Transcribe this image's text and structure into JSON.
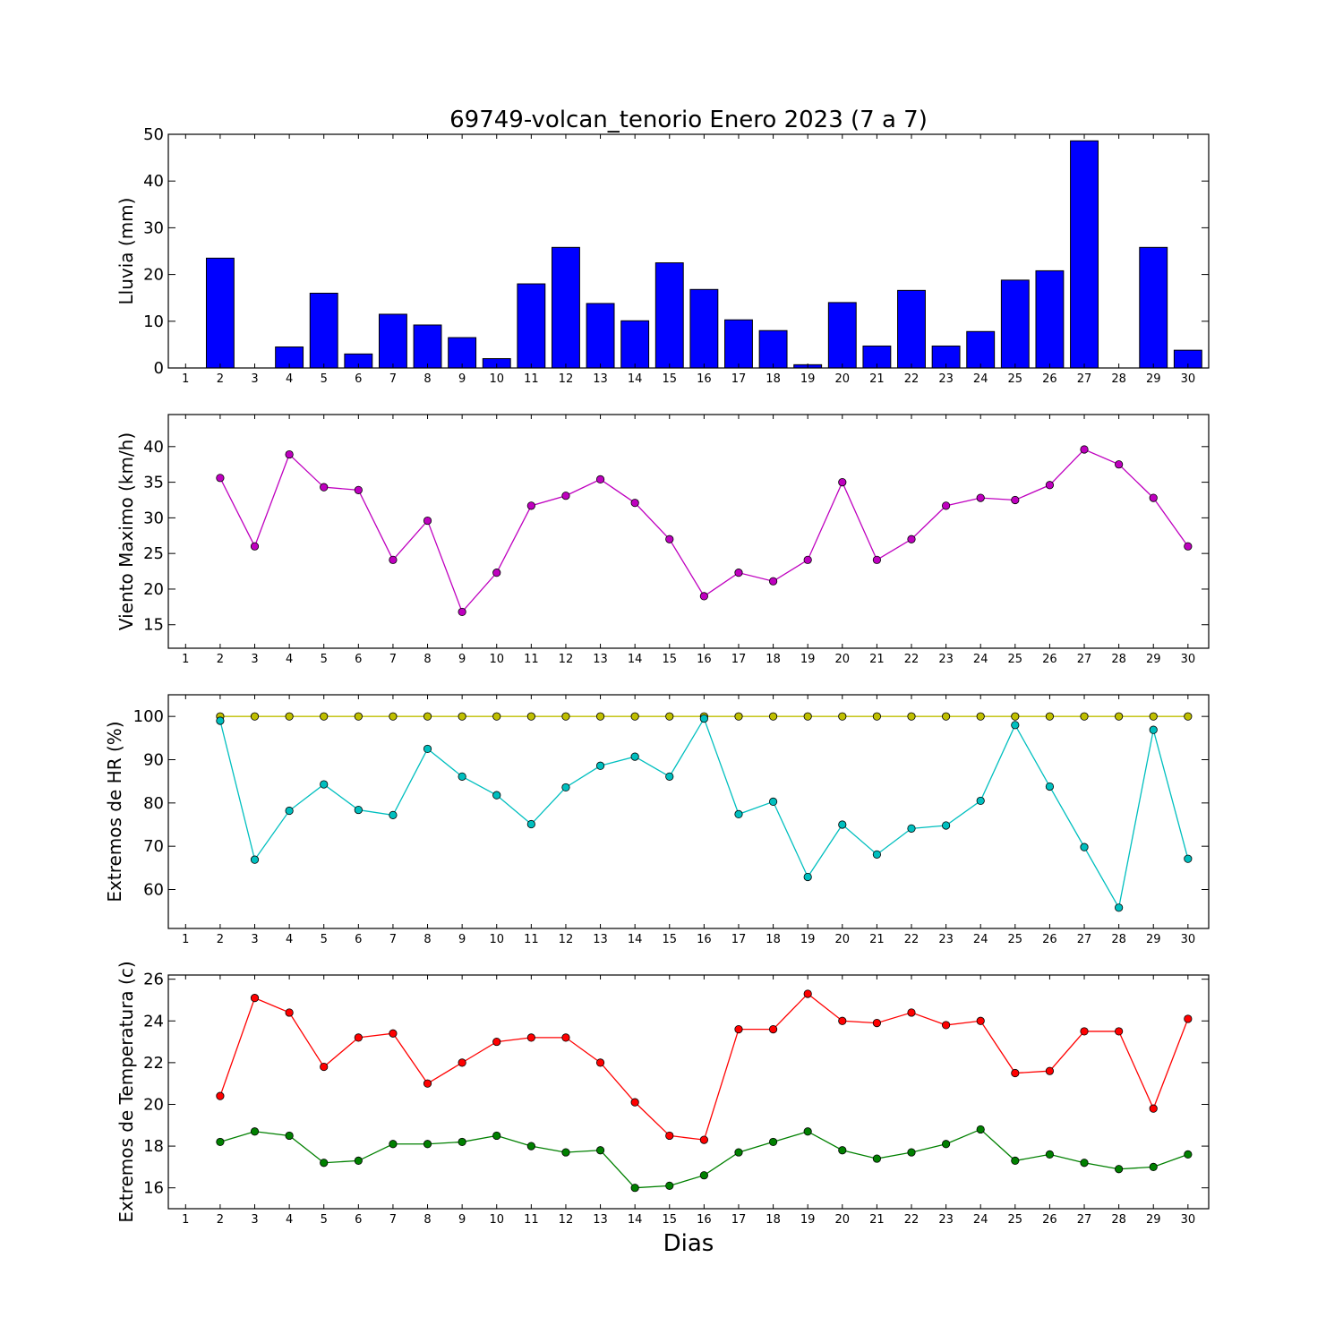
{
  "figure": {
    "title": "69749-volcan_tenorio Enero 2023  (7 a 7)",
    "xlabel": "Dias"
  },
  "chart_data": [
    {
      "id": "lluvia",
      "type": "bar",
      "ylabel": "Lluvia (mm)",
      "categories": [
        "1",
        "2",
        "3",
        "4",
        "5",
        "6",
        "7",
        "8",
        "9",
        "10",
        "11",
        "12",
        "13",
        "14",
        "15",
        "16",
        "17",
        "18",
        "19",
        "20",
        "21",
        "22",
        "23",
        "24",
        "25",
        "26",
        "27",
        "28",
        "29",
        "30"
      ],
      "ylim": [
        0,
        50
      ],
      "yticks": [
        0,
        10,
        20,
        30,
        40,
        50
      ],
      "grid": false,
      "series": [
        {
          "color": "#0000ff",
          "values": [
            0,
            23.5,
            0,
            4.5,
            16.0,
            3.0,
            11.5,
            9.2,
            6.5,
            2.0,
            18.0,
            25.8,
            13.8,
            10.1,
            22.5,
            16.8,
            10.3,
            8.0,
            0.7,
            14.0,
            4.7,
            16.6,
            4.7,
            7.8,
            18.8,
            20.8,
            48.6,
            0,
            25.8,
            3.8
          ]
        }
      ]
    },
    {
      "id": "viento",
      "type": "line",
      "ylabel": "Viento Maximo (km/h)",
      "categories": [
        "1",
        "2",
        "3",
        "4",
        "5",
        "6",
        "7",
        "8",
        "9",
        "10",
        "11",
        "12",
        "13",
        "14",
        "15",
        "16",
        "17",
        "18",
        "19",
        "20",
        "21",
        "22",
        "23",
        "24",
        "25",
        "26",
        "27",
        "28",
        "29",
        "30"
      ],
      "ylim": [
        11.7,
        44.5
      ],
      "yticks": [
        15,
        20,
        25,
        30,
        35,
        40
      ],
      "grid": false,
      "series": [
        {
          "color": "#bf00bf",
          "values": [
            null,
            35.6,
            26.0,
            38.9,
            34.3,
            33.9,
            24.1,
            29.6,
            16.8,
            22.3,
            31.7,
            33.1,
            35.4,
            32.1,
            27.0,
            19.0,
            22.3,
            21.1,
            24.1,
            35.0,
            24.1,
            27.0,
            31.7,
            32.8,
            32.5,
            34.6,
            39.6,
            37.5,
            32.8,
            26.0
          ]
        }
      ]
    },
    {
      "id": "hr",
      "type": "line",
      "ylabel": "Extremos de HR (%)",
      "categories": [
        "1",
        "2",
        "3",
        "4",
        "5",
        "6",
        "7",
        "8",
        "9",
        "10",
        "11",
        "12",
        "13",
        "14",
        "15",
        "16",
        "17",
        "18",
        "19",
        "20",
        "21",
        "22",
        "23",
        "24",
        "25",
        "26",
        "27",
        "28",
        "29",
        "30"
      ],
      "ylim": [
        51,
        105
      ],
      "yticks": [
        60,
        70,
        80,
        90,
        100
      ],
      "grid": false,
      "series": [
        {
          "color": "#bfbf00",
          "values": [
            null,
            100,
            100,
            100,
            100,
            100,
            100,
            100,
            100,
            100,
            100,
            100,
            100,
            100,
            100,
            100,
            100,
            100,
            100,
            100,
            100,
            100,
            100,
            100,
            100,
            100,
            100,
            100,
            100,
            100
          ]
        },
        {
          "color": "#00bfbf",
          "values": [
            null,
            99.0,
            66.9,
            78.2,
            84.3,
            78.4,
            77.2,
            92.5,
            86.1,
            81.8,
            75.1,
            83.6,
            88.6,
            90.7,
            86.1,
            99.5,
            77.4,
            80.3,
            62.9,
            75.0,
            68.1,
            74.1,
            74.8,
            80.5,
            98.0,
            83.8,
            69.8,
            55.8,
            96.9,
            67.1
          ]
        }
      ]
    },
    {
      "id": "temperatura",
      "type": "line",
      "ylabel": "Extremos de Temperatura (c)",
      "categories": [
        "1",
        "2",
        "3",
        "4",
        "5",
        "6",
        "7",
        "8",
        "9",
        "10",
        "11",
        "12",
        "13",
        "14",
        "15",
        "16",
        "17",
        "18",
        "19",
        "20",
        "21",
        "22",
        "23",
        "24",
        "25",
        "26",
        "27",
        "28",
        "29",
        "30"
      ],
      "ylim": [
        15.0,
        26.2
      ],
      "yticks": [
        16,
        18,
        20,
        22,
        24,
        26
      ],
      "grid": false,
      "series": [
        {
          "color": "#ff0000",
          "values": [
            null,
            20.4,
            25.1,
            24.4,
            21.8,
            23.2,
            23.4,
            21.0,
            22.0,
            23.0,
            23.2,
            23.2,
            22.0,
            20.1,
            18.5,
            18.3,
            23.6,
            23.6,
            25.3,
            24.0,
            23.9,
            24.4,
            23.8,
            24.0,
            21.5,
            21.6,
            23.5,
            23.5,
            19.8,
            24.1
          ]
        },
        {
          "color": "#008000",
          "values": [
            null,
            18.2,
            18.7,
            18.5,
            17.2,
            17.3,
            18.1,
            18.1,
            18.2,
            18.5,
            18.0,
            17.7,
            17.8,
            16.0,
            16.1,
            16.6,
            17.7,
            18.2,
            18.7,
            17.8,
            17.4,
            17.7,
            18.1,
            18.8,
            17.3,
            17.6,
            17.2,
            16.9,
            17.0,
            17.6
          ]
        }
      ]
    }
  ]
}
